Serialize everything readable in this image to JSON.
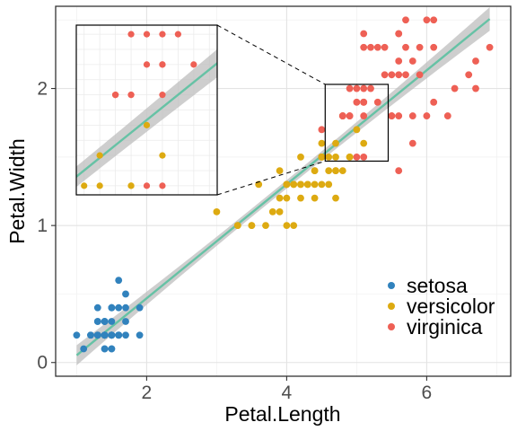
{
  "chart_data": {
    "type": "scatter",
    "xlabel": "Petal.Length",
    "ylabel": "Petal.Width",
    "xlim": [
      0.7,
      7.2
    ],
    "ylim": [
      -0.1,
      2.6
    ],
    "x_ticks": [
      2,
      4,
      6
    ],
    "y_ticks": [
      0,
      1,
      2
    ],
    "grid": true,
    "legend_position": "bottom-right",
    "regression_line": {
      "intercept": -0.363,
      "slope": 0.416,
      "color": "#66c2a5",
      "band_color": "#bdbdbd"
    },
    "inset": {
      "xlim": [
        4.55,
        5.45
      ],
      "ylim": [
        1.47,
        2.03
      ],
      "zoom_of_main_panel": true
    },
    "series": [
      {
        "name": "setosa",
        "color": "#3182bd",
        "points": [
          [
            1.4,
            0.2
          ],
          [
            1.4,
            0.2
          ],
          [
            1.3,
            0.2
          ],
          [
            1.5,
            0.2
          ],
          [
            1.4,
            0.2
          ],
          [
            1.7,
            0.4
          ],
          [
            1.4,
            0.3
          ],
          [
            1.5,
            0.2
          ],
          [
            1.4,
            0.2
          ],
          [
            1.5,
            0.1
          ],
          [
            1.5,
            0.2
          ],
          [
            1.6,
            0.2
          ],
          [
            1.4,
            0.1
          ],
          [
            1.1,
            0.1
          ],
          [
            1.2,
            0.2
          ],
          [
            1.5,
            0.4
          ],
          [
            1.3,
            0.4
          ],
          [
            1.4,
            0.3
          ],
          [
            1.7,
            0.3
          ],
          [
            1.5,
            0.3
          ],
          [
            1.7,
            0.2
          ],
          [
            1.5,
            0.4
          ],
          [
            1.0,
            0.2
          ],
          [
            1.7,
            0.5
          ],
          [
            1.9,
            0.2
          ],
          [
            1.6,
            0.2
          ],
          [
            1.6,
            0.4
          ],
          [
            1.5,
            0.2
          ],
          [
            1.4,
            0.2
          ],
          [
            1.6,
            0.2
          ],
          [
            1.6,
            0.2
          ],
          [
            1.5,
            0.4
          ],
          [
            1.5,
            0.1
          ],
          [
            1.4,
            0.2
          ],
          [
            1.5,
            0.2
          ],
          [
            1.2,
            0.2
          ],
          [
            1.3,
            0.2
          ],
          [
            1.4,
            0.1
          ],
          [
            1.3,
            0.2
          ],
          [
            1.5,
            0.2
          ],
          [
            1.3,
            0.3
          ],
          [
            1.3,
            0.3
          ],
          [
            1.3,
            0.2
          ],
          [
            1.6,
            0.6
          ],
          [
            1.9,
            0.4
          ],
          [
            1.4,
            0.3
          ],
          [
            1.6,
            0.2
          ],
          [
            1.4,
            0.2
          ],
          [
            1.5,
            0.2
          ],
          [
            1.4,
            0.2
          ]
        ]
      },
      {
        "name": "versicolor",
        "color": "#ddaa11",
        "points": [
          [
            4.7,
            1.4
          ],
          [
            4.5,
            1.5
          ],
          [
            4.9,
            1.5
          ],
          [
            4.0,
            1.3
          ],
          [
            4.6,
            1.5
          ],
          [
            4.5,
            1.3
          ],
          [
            4.7,
            1.6
          ],
          [
            3.3,
            1.0
          ],
          [
            4.6,
            1.3
          ],
          [
            3.9,
            1.4
          ],
          [
            3.5,
            1.0
          ],
          [
            4.2,
            1.5
          ],
          [
            4.0,
            1.0
          ],
          [
            4.7,
            1.4
          ],
          [
            3.6,
            1.3
          ],
          [
            4.4,
            1.4
          ],
          [
            4.5,
            1.5
          ],
          [
            4.1,
            1.0
          ],
          [
            4.5,
            1.5
          ],
          [
            3.9,
            1.1
          ],
          [
            4.8,
            1.8
          ],
          [
            4.0,
            1.3
          ],
          [
            4.9,
            1.5
          ],
          [
            4.7,
            1.2
          ],
          [
            4.3,
            1.3
          ],
          [
            4.4,
            1.4
          ],
          [
            4.8,
            1.4
          ],
          [
            5.0,
            1.7
          ],
          [
            4.5,
            1.5
          ],
          [
            3.5,
            1.0
          ],
          [
            3.8,
            1.1
          ],
          [
            3.7,
            1.0
          ],
          [
            3.9,
            1.2
          ],
          [
            5.1,
            1.6
          ],
          [
            4.5,
            1.5
          ],
          [
            4.5,
            1.6
          ],
          [
            4.7,
            1.5
          ],
          [
            4.4,
            1.3
          ],
          [
            4.1,
            1.3
          ],
          [
            4.0,
            1.3
          ],
          [
            4.4,
            1.2
          ],
          [
            4.6,
            1.4
          ],
          [
            4.0,
            1.2
          ],
          [
            3.3,
            1.0
          ],
          [
            4.2,
            1.3
          ],
          [
            4.2,
            1.2
          ],
          [
            4.2,
            1.3
          ],
          [
            4.3,
            1.3
          ],
          [
            3.0,
            1.1
          ],
          [
            4.1,
            1.3
          ]
        ]
      },
      {
        "name": "virginica",
        "color": "#ee6055",
        "points": [
          [
            6.0,
            2.5
          ],
          [
            5.1,
            1.9
          ],
          [
            5.9,
            2.1
          ],
          [
            5.6,
            1.8
          ],
          [
            5.8,
            2.2
          ],
          [
            6.6,
            2.1
          ],
          [
            4.5,
            1.7
          ],
          [
            6.3,
            1.8
          ],
          [
            5.8,
            1.8
          ],
          [
            6.1,
            2.5
          ],
          [
            5.1,
            2.0
          ],
          [
            5.3,
            1.9
          ],
          [
            5.5,
            2.1
          ],
          [
            5.0,
            2.0
          ],
          [
            5.1,
            2.4
          ],
          [
            5.3,
            2.3
          ],
          [
            5.5,
            1.8
          ],
          [
            6.7,
            2.2
          ],
          [
            6.9,
            2.3
          ],
          [
            5.0,
            1.5
          ],
          [
            5.7,
            2.3
          ],
          [
            4.9,
            2.0
          ],
          [
            6.7,
            2.0
          ],
          [
            4.9,
            1.8
          ],
          [
            5.7,
            2.1
          ],
          [
            6.0,
            1.8
          ],
          [
            4.8,
            1.8
          ],
          [
            4.9,
            1.8
          ],
          [
            5.6,
            2.1
          ],
          [
            5.8,
            1.6
          ],
          [
            6.1,
            1.9
          ],
          [
            6.4,
            2.0
          ],
          [
            5.6,
            2.2
          ],
          [
            5.1,
            1.5
          ],
          [
            5.6,
            1.4
          ],
          [
            6.1,
            2.3
          ],
          [
            5.6,
            2.4
          ],
          [
            5.5,
            1.8
          ],
          [
            4.8,
            1.8
          ],
          [
            5.4,
            2.1
          ],
          [
            5.6,
            2.4
          ],
          [
            5.1,
            2.3
          ],
          [
            5.1,
            1.9
          ],
          [
            5.9,
            2.3
          ],
          [
            5.7,
            2.5
          ],
          [
            5.2,
            2.3
          ],
          [
            5.0,
            1.9
          ],
          [
            5.2,
            2.0
          ],
          [
            5.4,
            2.3
          ],
          [
            5.1,
            1.8
          ]
        ]
      }
    ]
  }
}
